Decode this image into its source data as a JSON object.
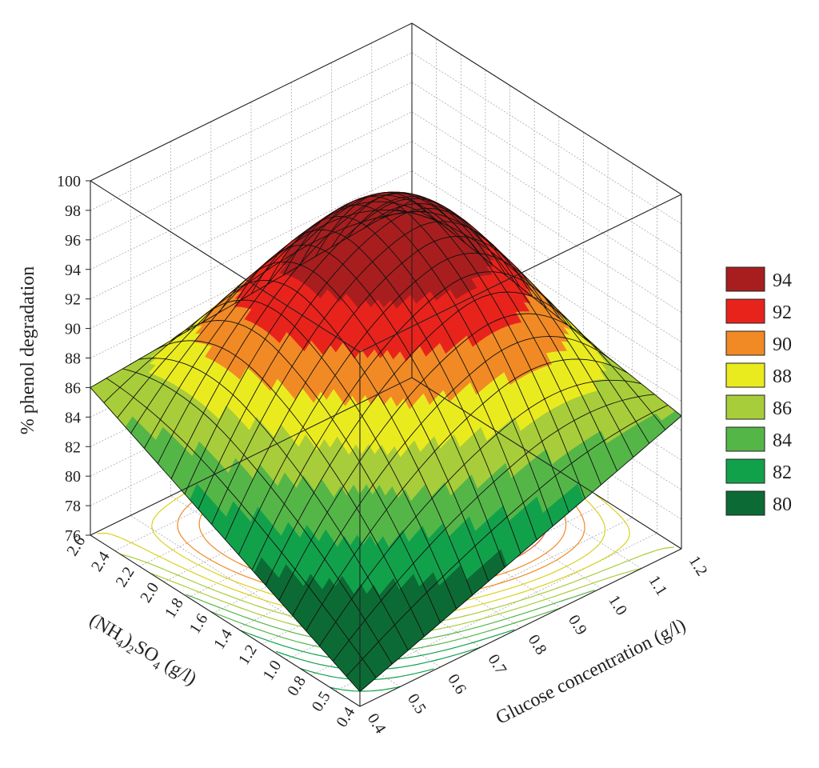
{
  "chart_data": {
    "type": "surface",
    "title": "",
    "xlabel": "Glucose concentration (g/l)",
    "ylabel": "(NH4)2SO4 (g/l)",
    "ylabel_parts": [
      "(NH",
      "4",
      ")",
      "2",
      "SO",
      "4",
      " (g/l)"
    ],
    "zlabel": "% phenol degradation",
    "x_ticks": [
      "0.4",
      "0.5",
      "0.6",
      "0.7",
      "0.8",
      "0.9",
      "1.0",
      "1.1",
      "1.2"
    ],
    "y_ticks": [
      "0.4",
      "0.5",
      "0.8",
      "1.0",
      "1.2",
      "1.4",
      "1.6",
      "1.8",
      "2.0",
      "2.2",
      "2.4",
      "2.6"
    ],
    "z_ticks": [
      "76",
      "78",
      "80",
      "82",
      "84",
      "86",
      "88",
      "90",
      "92",
      "94",
      "96",
      "98",
      "100"
    ],
    "zlim": [
      76,
      100
    ],
    "corner_values": {
      "x_min_y_min": 77,
      "x_max_y_min": 85,
      "x_min_y_max": 86,
      "x_max_y_max": 88
    },
    "peak": {
      "x": 0.9,
      "y": 1.6,
      "z": 95.5
    },
    "legend": {
      "placement": "right",
      "entries": [
        {
          "label": "94",
          "color": "#a81e1e"
        },
        {
          "label": "92",
          "color": "#e8231c"
        },
        {
          "label": "90",
          "color": "#f18a24"
        },
        {
          "label": "88",
          "color": "#eaeb1f"
        },
        {
          "label": "86",
          "color": "#a8cd3a"
        },
        {
          "label": "84",
          "color": "#55b648"
        },
        {
          "label": "82",
          "color": "#12a14b"
        },
        {
          "label": "80",
          "color": "#0c6b34"
        }
      ]
    },
    "grid": true,
    "contour_projection": true
  }
}
